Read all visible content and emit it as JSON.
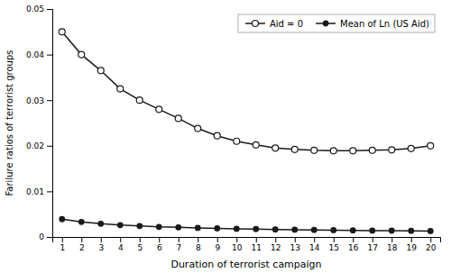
{
  "chart_data": {
    "type": "line",
    "x_label": "Duration of terrorist campaign",
    "y_label": "Farilure ratios of terrorist groups",
    "x": [
      1,
      2,
      3,
      4,
      5,
      6,
      7,
      8,
      9,
      10,
      11,
      12,
      13,
      14,
      15,
      16,
      17,
      18,
      19,
      20
    ],
    "series": [
      {
        "name": "Aid = 0",
        "color": "#1a1a1a",
        "marker": "open-circle",
        "line_style": "solid",
        "values": [
          0.045,
          0.04,
          0.0365,
          0.0325,
          0.03,
          0.028,
          0.026,
          0.0238,
          0.0222,
          0.021,
          0.0202,
          0.0195,
          0.0192,
          0.019,
          0.0189,
          0.0189,
          0.019,
          0.0191,
          0.0194,
          0.02
        ]
      },
      {
        "name": "Mean of Ln (US Aid)",
        "color": "#1a1a1a",
        "marker": "filled-circle",
        "line_style": "solid",
        "values": [
          0.0039,
          0.0033,
          0.0029,
          0.0026,
          0.0024,
          0.0022,
          0.0021,
          0.002,
          0.0019,
          0.0018,
          0.00175,
          0.00165,
          0.0016,
          0.00155,
          0.0015,
          0.00145,
          0.0014,
          0.00138,
          0.00135,
          0.0013
        ]
      }
    ],
    "xlim": [
      0.5,
      20.5
    ],
    "xticks": [
      1,
      2,
      3,
      4,
      5,
      6,
      7,
      8,
      9,
      10,
      11,
      12,
      13,
      14,
      15,
      16,
      17,
      18,
      19,
      20
    ],
    "ylim": [
      0,
      0.05
    ],
    "yticks": [
      0,
      0.01,
      0.02,
      0.03,
      0.04,
      0.05
    ],
    "grid": false,
    "legend": "upper-right"
  }
}
